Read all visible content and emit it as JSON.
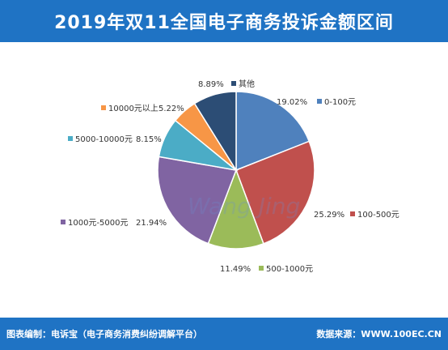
{
  "header": {
    "title": "2019年双11全国电子商务投诉金额区间"
  },
  "chart_data": {
    "type": "pie",
    "title": "2019年双11全国电子商务投诉金额区间",
    "slices": [
      {
        "label": "0-100元",
        "value": 19.02,
        "percent_text": "19.02%",
        "color": "#4f81bd"
      },
      {
        "label": "100-500元",
        "value": 25.29,
        "percent_text": "25.29%",
        "color": "#c0504d"
      },
      {
        "label": "500-1000元",
        "value": 11.49,
        "percent_text": "11.49%",
        "color": "#9bbb59"
      },
      {
        "label": "1000元-5000元",
        "value": 21.94,
        "percent_text": "21.94%",
        "color": "#8064a2"
      },
      {
        "label": "5000-10000元",
        "value": 8.15,
        "percent_text": "8.15%",
        "color": "#4bacc6"
      },
      {
        "label": "10000元以上",
        "value": 5.22,
        "percent_text": "5.22%",
        "color": "#f79646"
      },
      {
        "label": "其他",
        "value": 8.89,
        "percent_text": "8.89%",
        "color": "#2c4d75"
      }
    ]
  },
  "watermark": {
    "text": "Wang Jing"
  },
  "footer": {
    "left": "图表编制：电诉宝（电子商务消费纠纷调解平台）",
    "right": "数据来源：WWW.100EC.CN"
  }
}
